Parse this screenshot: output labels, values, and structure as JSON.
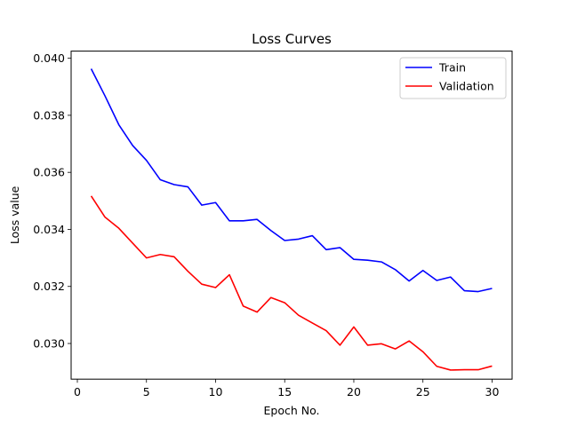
{
  "chart_data": {
    "type": "line",
    "title": "Loss Curves",
    "xlabel": "Epoch No.",
    "ylabel": "Loss value",
    "xlim": [
      -0.45,
      31.45
    ],
    "ylim": [
      0.02875,
      0.04025
    ],
    "x_ticks": [
      0,
      5,
      10,
      15,
      20,
      25,
      30
    ],
    "y_ticks": [
      0.03,
      0.032,
      0.034,
      0.036,
      0.038,
      0.04
    ],
    "y_tick_labels": [
      "0.030",
      "0.032",
      "0.034",
      "0.036",
      "0.038",
      "0.040"
    ],
    "grid": false,
    "legend_position": "top-right",
    "x": [
      1,
      2,
      3,
      4,
      5,
      6,
      7,
      8,
      9,
      10,
      11,
      12,
      13,
      14,
      15,
      16,
      17,
      18,
      19,
      20,
      21,
      22,
      23,
      24,
      25,
      26,
      27,
      28,
      29,
      30
    ],
    "series": [
      {
        "name": "Train",
        "color": "#0000ff",
        "values": [
          0.03963,
          0.03868,
          0.03767,
          0.03694,
          0.03642,
          0.03574,
          0.03557,
          0.03549,
          0.03485,
          0.03494,
          0.0343,
          0.0343,
          0.03435,
          0.03396,
          0.03361,
          0.03366,
          0.03378,
          0.03329,
          0.03336,
          0.03295,
          0.03292,
          0.03286,
          0.03259,
          0.03219,
          0.03256,
          0.03221,
          0.03233,
          0.03185,
          0.03182,
          0.03193
        ]
      },
      {
        "name": "Validation",
        "color": "#ff0000",
        "values": [
          0.03517,
          0.03443,
          0.03404,
          0.03352,
          0.033,
          0.03312,
          0.03304,
          0.03253,
          0.03208,
          0.03196,
          0.03241,
          0.03131,
          0.0311,
          0.03161,
          0.03143,
          0.03099,
          0.03072,
          0.03045,
          0.02994,
          0.03058,
          0.02994,
          0.02999,
          0.02981,
          0.03009,
          0.02971,
          0.0292,
          0.02907,
          0.02908,
          0.02908,
          0.02921
        ]
      }
    ]
  }
}
